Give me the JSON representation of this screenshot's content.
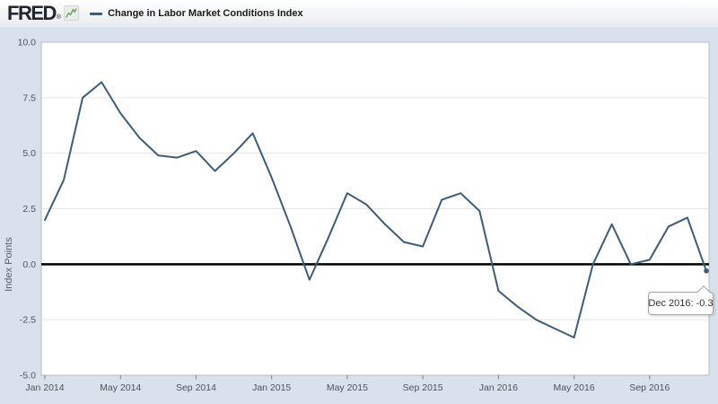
{
  "header": {
    "logo_text": "FRED",
    "registered_mark": "®",
    "legend": {
      "label": "Change in Labor Market Conditions Index"
    }
  },
  "y_axis": {
    "title": "Index Points",
    "tick_labels": [
      "10.0",
      "7.5",
      "5.0",
      "2.5",
      "0.0",
      "-2.5",
      "-5.0"
    ]
  },
  "x_axis": {
    "tick_labels": [
      "Jan 2014",
      "May 2014",
      "Sep 2014",
      "Jan 2015",
      "May 2015",
      "Sep 2015",
      "Jan 2016",
      "May 2016",
      "Sep 2016"
    ]
  },
  "tooltip": {
    "text": "Dec 2016: -0.3",
    "period": "Dec 2016",
    "value": "-0.3"
  },
  "colors": {
    "line": "#3e5c78",
    "canvas_bg": "#d9e2ec",
    "plot_bg": "#ffffff",
    "plot_border": "#b3bac2",
    "grid": "#e5e5e5",
    "zero_line": "#000000",
    "tick_mark": "#7a8288",
    "tick_text": "#4d5359",
    "axis_title_text": "#55606a",
    "icon_line": "#6aa84f",
    "tooltip_border": "#a6a6a6"
  },
  "chart_data": {
    "type": "line",
    "title": "Change in Labor Market Conditions Index",
    "xlabel": "",
    "ylabel": "Index Points",
    "ylim": [
      -5.0,
      10.0
    ],
    "y_ticks": [
      10.0,
      7.5,
      5.0,
      2.5,
      0.0,
      -2.5,
      -5.0
    ],
    "grid": true,
    "legend_position": "top-left-header",
    "zero_baseline": true,
    "x_tick_every": 4,
    "x": [
      "Jan 2014",
      "Feb 2014",
      "Mar 2014",
      "Apr 2014",
      "May 2014",
      "Jun 2014",
      "Jul 2014",
      "Aug 2014",
      "Sep 2014",
      "Oct 2014",
      "Nov 2014",
      "Dec 2014",
      "Jan 2015",
      "Feb 2015",
      "Mar 2015",
      "Apr 2015",
      "May 2015",
      "Jun 2015",
      "Jul 2015",
      "Aug 2015",
      "Sep 2015",
      "Oct 2015",
      "Nov 2015",
      "Dec 2015",
      "Jan 2016",
      "Feb 2016",
      "Mar 2016",
      "Apr 2016",
      "May 2016",
      "Jun 2016",
      "Jul 2016",
      "Aug 2016",
      "Sep 2016",
      "Oct 2016",
      "Nov 2016",
      "Dec 2016"
    ],
    "values": [
      2.0,
      3.8,
      7.5,
      8.2,
      6.8,
      5.7,
      4.9,
      4.8,
      5.1,
      4.2,
      5.0,
      5.9,
      3.9,
      1.7,
      -0.7,
      1.2,
      3.2,
      2.7,
      1.8,
      1.0,
      0.8,
      2.9,
      3.2,
      2.4,
      -1.2,
      -1.9,
      -2.5,
      -2.9,
      -3.3,
      0.0,
      1.8,
      0.0,
      0.2,
      1.7,
      2.1,
      -0.3
    ],
    "highlighted_point": {
      "label": "Dec 2016",
      "value": -0.3
    }
  }
}
